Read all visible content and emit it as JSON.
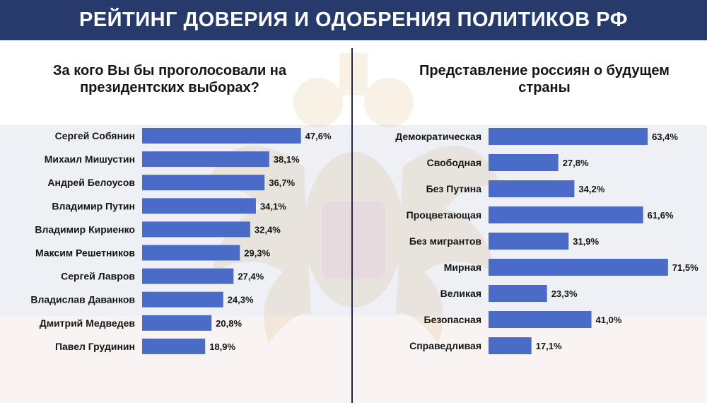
{
  "header": {
    "title": "РЕЙТИНГ ДОВЕРИЯ И ОДОБРЕНИЯ ПОЛИТИКОВ РФ"
  },
  "colors": {
    "header_bg": "#263b6b",
    "bar": "#4b6bc9",
    "text": "#151515"
  },
  "chart_data": [
    {
      "type": "bar",
      "orientation": "horizontal",
      "title": "За кого Вы бы проголосовали на президентских выборах?",
      "categories": [
        "Сергей Собянин",
        "Михаил Мишустин",
        "Андрей Белоусов",
        "Владимир Путин",
        "Владимир Кириенко",
        "Максим Решетников",
        "Сергей Лавров",
        "Владислав Даванков",
        "Дмитрий Медведев",
        "Павел Грудинин"
      ],
      "values": [
        47.6,
        38.1,
        36.7,
        34.1,
        32.4,
        29.3,
        27.4,
        24.3,
        20.8,
        18.9
      ],
      "labels": [
        "47,6%",
        "38,1%",
        "36,7%",
        "34,1%",
        "32,4%",
        "29,3%",
        "27,4%",
        "24,3%",
        "20,8%",
        "18,9%"
      ]
    },
    {
      "type": "bar",
      "orientation": "horizontal",
      "title": "Представление россиян о будущем страны",
      "categories": [
        "Демократическая",
        "Свободная",
        "Без Путина",
        "Процветающая",
        "Без мигрантов",
        "Мирная",
        "Великая",
        "Безопасная",
        "Справедливая"
      ],
      "values": [
        63.4,
        27.8,
        34.2,
        61.6,
        31.9,
        71.5,
        23.3,
        41.0,
        17.1
      ],
      "labels": [
        "63,4%",
        "27,8%",
        "34,2%",
        "61,6%",
        "31,9%",
        "71,5%",
        "23,3%",
        "41,0%",
        "17,1%"
      ]
    }
  ]
}
